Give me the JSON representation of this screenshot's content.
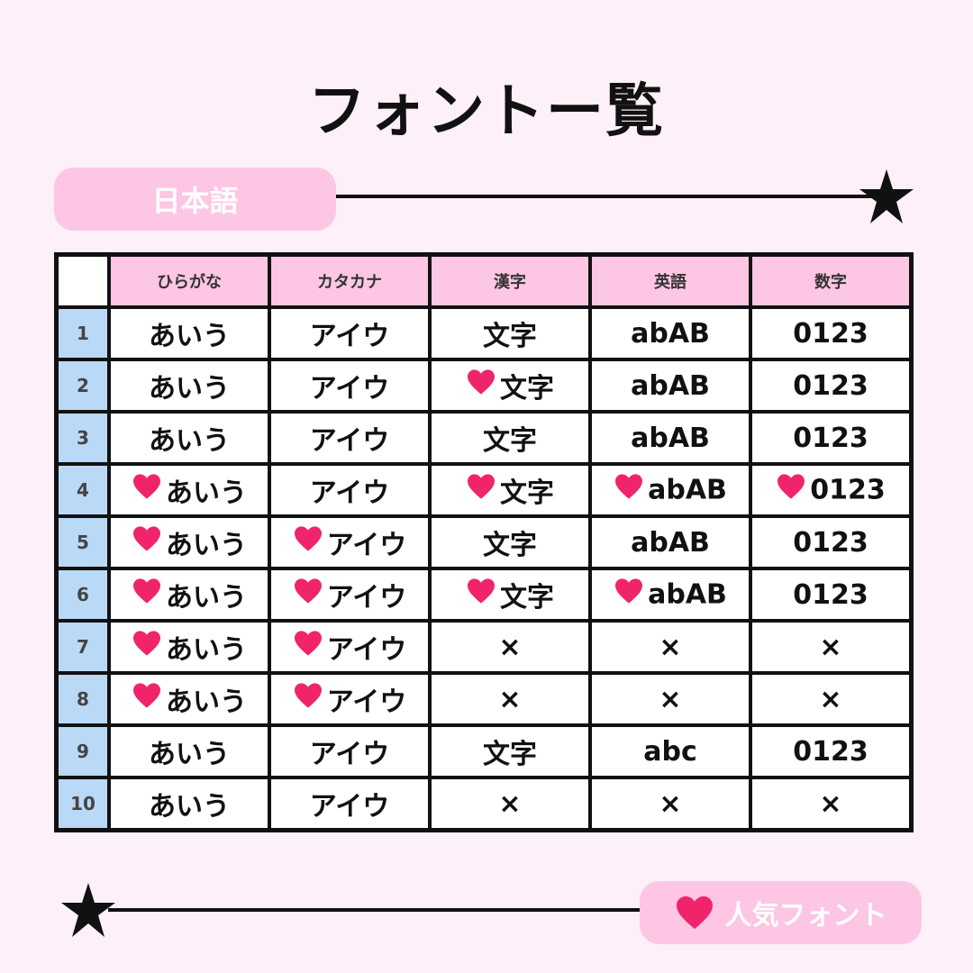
{
  "title": "フォントー覧",
  "section_label": "日本語",
  "legend_label": "人気フォント",
  "colors": {
    "background": "#fdf0f8",
    "pink": "#fcc6e4",
    "blue": "#b9d9f7",
    "heart": "#f0246b"
  },
  "table": {
    "headers": [
      "ひらがな",
      "カタカナ",
      "漢字",
      "英語",
      "数字"
    ],
    "rows": [
      {
        "num": "1",
        "cells": [
          {
            "text": "あいう",
            "heart": false
          },
          {
            "text": "アイウ",
            "heart": false
          },
          {
            "text": "文字",
            "heart": false
          },
          {
            "text": "abAB",
            "heart": false
          },
          {
            "text": "0123",
            "heart": false
          }
        ]
      },
      {
        "num": "2",
        "cells": [
          {
            "text": "あいう",
            "heart": false
          },
          {
            "text": "アイウ",
            "heart": false
          },
          {
            "text": "文字",
            "heart": true
          },
          {
            "text": "abAB",
            "heart": false
          },
          {
            "text": "0123",
            "heart": false
          }
        ]
      },
      {
        "num": "3",
        "cells": [
          {
            "text": "あいう",
            "heart": false
          },
          {
            "text": "アイウ",
            "heart": false
          },
          {
            "text": "文字",
            "heart": false
          },
          {
            "text": "abAB",
            "heart": false
          },
          {
            "text": "0123",
            "heart": false
          }
        ]
      },
      {
        "num": "4",
        "cells": [
          {
            "text": "あいう",
            "heart": true
          },
          {
            "text": "アイウ",
            "heart": false
          },
          {
            "text": "文字",
            "heart": true
          },
          {
            "text": "abAB",
            "heart": true
          },
          {
            "text": "0123",
            "heart": true
          }
        ]
      },
      {
        "num": "5",
        "cells": [
          {
            "text": "あいう",
            "heart": true
          },
          {
            "text": "アイウ",
            "heart": true
          },
          {
            "text": "文字",
            "heart": false
          },
          {
            "text": "abAB",
            "heart": false
          },
          {
            "text": "0123",
            "heart": false
          }
        ]
      },
      {
        "num": "6",
        "cells": [
          {
            "text": "あいう",
            "heart": true
          },
          {
            "text": "アイウ",
            "heart": true
          },
          {
            "text": "文字",
            "heart": true
          },
          {
            "text": "abAB",
            "heart": true
          },
          {
            "text": "0123",
            "heart": false
          }
        ]
      },
      {
        "num": "7",
        "cells": [
          {
            "text": "あいう",
            "heart": true
          },
          {
            "text": "アイウ",
            "heart": true
          },
          {
            "text": "×",
            "heart": false
          },
          {
            "text": "×",
            "heart": false
          },
          {
            "text": "×",
            "heart": false
          }
        ]
      },
      {
        "num": "8",
        "cells": [
          {
            "text": "あいう",
            "heart": true
          },
          {
            "text": "アイウ",
            "heart": true
          },
          {
            "text": "×",
            "heart": false
          },
          {
            "text": "×",
            "heart": false
          },
          {
            "text": "×",
            "heart": false
          }
        ]
      },
      {
        "num": "9",
        "cells": [
          {
            "text": "あいう",
            "heart": false
          },
          {
            "text": "アイウ",
            "heart": false
          },
          {
            "text": "文字",
            "heart": false
          },
          {
            "text": "abc",
            "heart": false
          },
          {
            "text": "0123",
            "heart": false
          }
        ]
      },
      {
        "num": "10",
        "cells": [
          {
            "text": "あいう",
            "heart": false
          },
          {
            "text": "アイウ",
            "heart": false
          },
          {
            "text": "×",
            "heart": false
          },
          {
            "text": "×",
            "heart": false
          },
          {
            "text": "×",
            "heart": false
          }
        ]
      }
    ]
  }
}
